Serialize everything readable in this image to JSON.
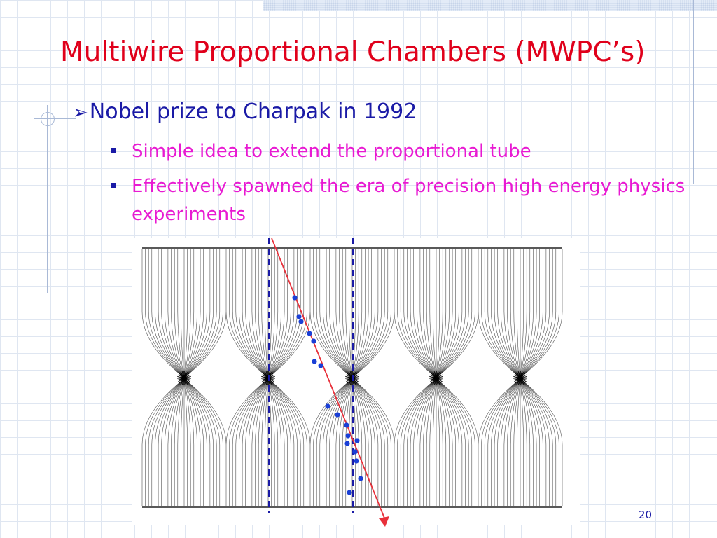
{
  "slide": {
    "title": "Multiwire Proportional Chambers (MWPC’s)",
    "bullet_main": "Nobel prize to Charpak in 1992",
    "sub_bullets": [
      "Simple idea to extend the proportional tube",
      "Effectively spawned the era of precision high energy physics experiments"
    ],
    "page_number": "20"
  },
  "figure": {
    "anode_wire_count": 5,
    "colors": {
      "title": "#e0001b",
      "main_bullet": "#1a1aa6",
      "sub_bullet": "#e81ad2",
      "track": "#e8303a",
      "hits": "#1a3fd6",
      "dashed_lines": "#1a1aa6",
      "field_lines": "#111111"
    }
  }
}
